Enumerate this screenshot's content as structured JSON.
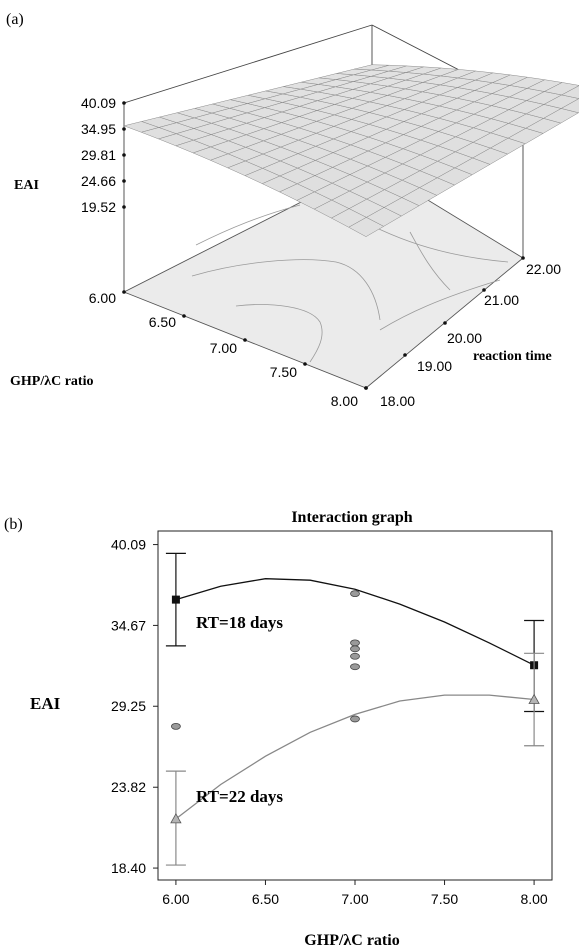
{
  "panel_a_label": "(a)",
  "panel_b_label": "(b)",
  "chart_data": [
    {
      "type": "surface",
      "zlabel": "EAI",
      "xlabel": "GHP/λC ratio",
      "ylabel": "reaction time",
      "z_ticks": [
        "40.09",
        "34.95",
        "29.81",
        "24.66",
        "19.52"
      ],
      "x_ticks": [
        "6.00",
        "6.50",
        "7.00",
        "7.50",
        "8.00"
      ],
      "y_ticks": [
        "18.00",
        "19.00",
        "20.00",
        "21.00",
        "22.00"
      ],
      "xlim": [
        6.0,
        8.0
      ],
      "ylim": [
        18.0,
        22.0
      ],
      "zlim": [
        19.52,
        40.09
      ]
    },
    {
      "type": "line",
      "title": "Interaction graph",
      "xlabel": "GHP/λC ratio",
      "ylabel": "EAI",
      "xlim": [
        5.9,
        8.1
      ],
      "ylim": [
        17.6,
        41.0
      ],
      "x_ticks": [
        "6.00",
        "6.50",
        "7.00",
        "7.50",
        "8.00"
      ],
      "y_ticks": [
        "18.40",
        "23.82",
        "29.25",
        "34.67",
        "40.09"
      ],
      "series": [
        {
          "name": "RT=18 days",
          "color": "#111111",
          "marker": "square",
          "x": [
            6.0,
            8.0
          ],
          "y": [
            36.4,
            32.0
          ],
          "error": [
            {
              "x": 6.0,
              "low": 33.3,
              "high": 39.5
            },
            {
              "x": 8.0,
              "low": 28.9,
              "high": 35.0
            }
          ],
          "curve_x": [
            6.0,
            6.25,
            6.5,
            6.75,
            7.0,
            7.25,
            7.5,
            7.75,
            8.0
          ],
          "curve_y": [
            36.4,
            37.3,
            37.8,
            37.7,
            37.1,
            36.1,
            34.9,
            33.5,
            32.0
          ]
        },
        {
          "name": "RT=22 days",
          "color": "#888888",
          "marker": "triangle",
          "x": [
            6.0,
            8.0
          ],
          "y": [
            21.7,
            29.7
          ],
          "error": [
            {
              "x": 6.0,
              "low": 18.6,
              "high": 24.9
            },
            {
              "x": 8.0,
              "low": 26.6,
              "high": 32.8
            }
          ],
          "curve_x": [
            6.0,
            6.25,
            6.5,
            6.75,
            7.0,
            7.25,
            7.5,
            7.75,
            8.0
          ],
          "curve_y": [
            21.7,
            24.0,
            25.9,
            27.5,
            28.7,
            29.6,
            30.0,
            30.0,
            29.7
          ]
        }
      ],
      "points": [
        {
          "x": 6.0,
          "y": 27.9
        },
        {
          "x": 7.0,
          "y": 36.8
        },
        {
          "x": 7.0,
          "y": 33.5
        },
        {
          "x": 7.0,
          "y": 33.1
        },
        {
          "x": 7.0,
          "y": 32.6
        },
        {
          "x": 7.0,
          "y": 31.9
        },
        {
          "x": 7.0,
          "y": 28.4
        }
      ]
    }
  ]
}
